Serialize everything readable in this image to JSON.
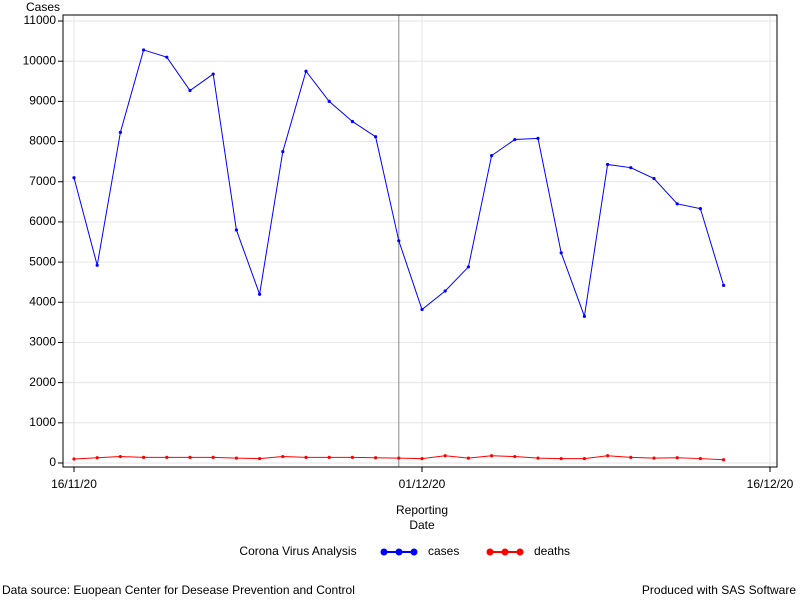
{
  "chart_data": {
    "type": "line",
    "y_label": "Cases",
    "x_label": [
      "Reporting",
      "Date"
    ],
    "legend_title": "Corona Virus Analysis",
    "footnote_left": "Data source: Euopean Center for Desease Prevention and Control",
    "footnote_right": "Produced with SAS Software",
    "x": [
      "16/11/20",
      "17/11/20",
      "18/11/20",
      "19/11/20",
      "20/11/20",
      "21/11/20",
      "22/11/20",
      "23/11/20",
      "24/11/20",
      "25/11/20",
      "26/11/20",
      "27/11/20",
      "28/11/20",
      "29/11/20",
      "30/11/20",
      "01/12/20",
      "02/12/20",
      "03/12/20",
      "04/12/20",
      "05/12/20",
      "06/12/20",
      "07/12/20",
      "08/12/20",
      "09/12/20",
      "10/12/20",
      "11/12/20",
      "12/12/20",
      "13/12/20",
      "14/12/20"
    ],
    "series": [
      {
        "name": "cases",
        "color": "#0000ff",
        "values": [
          7100,
          4920,
          8230,
          10280,
          10100,
          9270,
          9680,
          5800,
          4200,
          7750,
          9750,
          9000,
          8500,
          8120,
          5530,
          3820,
          4280,
          4880,
          7650,
          8050,
          8080,
          5230,
          3650,
          7430,
          7350,
          7080,
          6450,
          6330,
          4420
        ]
      },
      {
        "name": "deaths",
        "color": "#ff0000",
        "values": [
          100,
          130,
          160,
          140,
          140,
          140,
          140,
          120,
          110,
          160,
          140,
          140,
          140,
          130,
          120,
          110,
          180,
          120,
          180,
          160,
          120,
          110,
          110,
          180,
          140,
          120,
          130,
          110,
          80
        ]
      }
    ],
    "xlim": [
      "16/11/20",
      "16/12/20"
    ],
    "xticks": [
      "16/11/20",
      "01/12/20",
      "16/12/20"
    ],
    "ylim": [
      -100,
      11150
    ],
    "yticks": [
      0,
      1000,
      2000,
      3000,
      4000,
      5000,
      6000,
      7000,
      8000,
      9000,
      10000,
      11000
    ],
    "reference_line_x": "30/11/20",
    "grid": true
  }
}
